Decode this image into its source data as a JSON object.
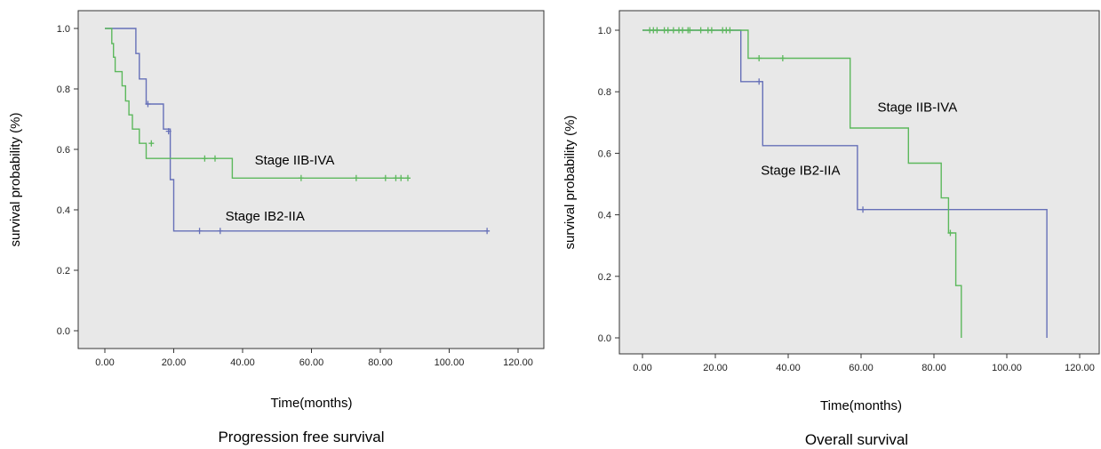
{
  "chart_data": [
    {
      "type": "line",
      "title": "Progression free survival",
      "xlabel": "Time(months)",
      "ylabel": "survival probability (%)",
      "xlim": [
        0,
        120
      ],
      "ylim": [
        0,
        1
      ],
      "x_ticks": [
        "0.00",
        "20.00",
        "40.00",
        "60.00",
        "80.00",
        "100.00",
        "120.00"
      ],
      "y_ticks": [
        "0.0",
        "0.2",
        "0.4",
        "0.6",
        "0.8",
        "1.0"
      ],
      "grid": false,
      "plot_background": "#e8e8e8",
      "series": [
        {
          "name": "Stage IB2-IIA",
          "color": "#6670b8",
          "steps": [
            [
              0,
              1.0
            ],
            [
              9,
              1.0
            ],
            [
              9,
              0.917
            ],
            [
              10,
              0.917
            ],
            [
              10,
              0.833
            ],
            [
              12,
              0.833
            ],
            [
              12,
              0.75
            ],
            [
              17,
              0.75
            ],
            [
              17,
              0.667
            ],
            [
              19,
              0.667
            ],
            [
              19,
              0.5
            ],
            [
              20,
              0.5
            ],
            [
              20,
              0.33
            ],
            [
              111,
              0.33
            ]
          ],
          "censored": [
            [
              12.5,
              0.75
            ],
            [
              18.5,
              0.66
            ],
            [
              27.5,
              0.33
            ],
            [
              33.5,
              0.33
            ],
            [
              111,
              0.33
            ]
          ]
        },
        {
          "name": "Stage IIB-IVA",
          "color": "#5cb85c",
          "steps": [
            [
              0,
              1.0
            ],
            [
              2,
              1.0
            ],
            [
              2,
              0.95
            ],
            [
              2.5,
              0.95
            ],
            [
              2.5,
              0.905
            ],
            [
              3,
              0.905
            ],
            [
              3,
              0.857
            ],
            [
              5,
              0.857
            ],
            [
              5,
              0.81
            ],
            [
              6,
              0.81
            ],
            [
              6,
              0.76
            ],
            [
              7,
              0.76
            ],
            [
              7,
              0.714
            ],
            [
              8,
              0.714
            ],
            [
              8,
              0.667
            ],
            [
              10,
              0.667
            ],
            [
              10,
              0.62
            ],
            [
              12,
              0.62
            ],
            [
              12,
              0.57
            ],
            [
              37,
              0.57
            ],
            [
              37,
              0.505
            ],
            [
              88,
              0.505
            ]
          ],
          "censored": [
            [
              13.5,
              0.62
            ],
            [
              29,
              0.57
            ],
            [
              32,
              0.57
            ],
            [
              57,
              0.505
            ],
            [
              73,
              0.505
            ],
            [
              81.5,
              0.505
            ],
            [
              84.5,
              0.505
            ],
            [
              86,
              0.505
            ],
            [
              88,
              0.505
            ]
          ]
        }
      ],
      "annotations": [
        {
          "text": "Stage IIB-IVA",
          "x": 43.5,
          "y": 0.55
        },
        {
          "text": "Stage IB2-IIA",
          "x": 35,
          "y": 0.365
        }
      ]
    },
    {
      "type": "line",
      "title": "Overall survival",
      "xlabel": "Time(months)",
      "ylabel": "survival probability (%)",
      "xlim": [
        0,
        120
      ],
      "ylim": [
        0,
        1
      ],
      "x_ticks": [
        "0.00",
        "20.00",
        "40.00",
        "60.00",
        "80.00",
        "100.00",
        "120.00"
      ],
      "y_ticks": [
        "0.0",
        "0.2",
        "0.4",
        "0.6",
        "0.8",
        "1.0"
      ],
      "grid": false,
      "plot_background": "#e8e8e8",
      "series": [
        {
          "name": "Stage IB2-IIA",
          "color": "#6670b8",
          "steps": [
            [
              0,
              1.0
            ],
            [
              27,
              1.0
            ],
            [
              27,
              0.833
            ],
            [
              33,
              0.833
            ],
            [
              33,
              0.625
            ],
            [
              59,
              0.625
            ],
            [
              59,
              0.417
            ],
            [
              111,
              0.417
            ],
            [
              111,
              0.0
            ]
          ],
          "censored": [
            [
              32,
              0.833
            ],
            [
              60.5,
              0.417
            ]
          ]
        },
        {
          "name": "Stage IIB-IVA",
          "color": "#5cb85c",
          "steps": [
            [
              0,
              1.0
            ],
            [
              29,
              1.0
            ],
            [
              29,
              0.909
            ],
            [
              57,
              0.909
            ],
            [
              57,
              0.682
            ],
            [
              73,
              0.682
            ],
            [
              73,
              0.568
            ],
            [
              82,
              0.568
            ],
            [
              82,
              0.455
            ],
            [
              84,
              0.455
            ],
            [
              84,
              0.341
            ],
            [
              86,
              0.341
            ],
            [
              86,
              0.17
            ],
            [
              87.5,
              0.17
            ],
            [
              87.5,
              0.0
            ]
          ],
          "censored": [
            [
              2,
              1.0
            ],
            [
              3,
              1.0
            ],
            [
              4,
              1.0
            ],
            [
              6,
              1.0
            ],
            [
              7,
              1.0
            ],
            [
              8.5,
              1.0
            ],
            [
              10,
              1.0
            ],
            [
              11,
              1.0
            ],
            [
              12.5,
              1.0
            ],
            [
              13,
              1.0
            ],
            [
              16,
              1.0
            ],
            [
              18,
              1.0
            ],
            [
              19,
              1.0
            ],
            [
              22,
              1.0
            ],
            [
              23,
              1.0
            ],
            [
              24,
              1.0
            ],
            [
              32,
              0.909
            ],
            [
              38.5,
              0.909
            ],
            [
              84.5,
              0.341
            ]
          ]
        }
      ],
      "annotations": [
        {
          "text": "Stage IIB-IVA",
          "x": 64.5,
          "y": 0.735
        },
        {
          "text": "Stage IB2-IIA",
          "x": 32.5,
          "y": 0.53
        }
      ]
    }
  ]
}
